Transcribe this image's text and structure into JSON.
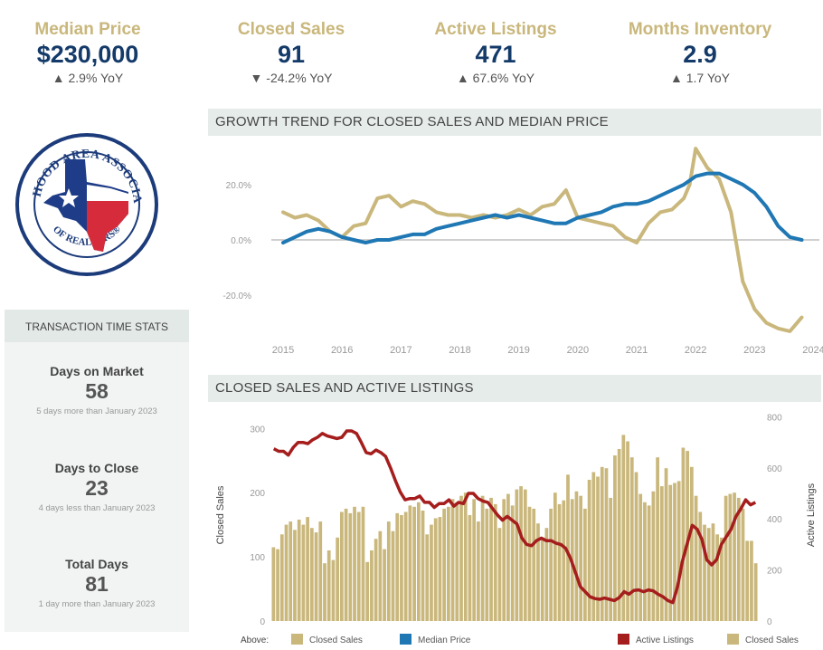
{
  "kpis": [
    {
      "label": "Median Price",
      "value": "$230,000",
      "change": "▲ 2.9% YoY"
    },
    {
      "label": "Closed Sales",
      "value": "91",
      "change": "▼ -24.2% YoY"
    },
    {
      "label": "Active Listings",
      "value": "471",
      "change": "▲ 67.6% YoY"
    },
    {
      "label": "Months Inventory",
      "value": "2.9",
      "change": "▲ 1.7 YoY"
    }
  ],
  "logo": {
    "top_text": "FORT HOOD AREA ASSOCIATION",
    "bottom_text": "OF REALTORS®"
  },
  "transaction": {
    "title": "TRANSACTION TIME STATS",
    "stats": [
      {
        "title": "Days on Market",
        "value": "58",
        "sub": "5 days more than January 2023"
      },
      {
        "title": "Days to Close",
        "value": "23",
        "sub": "4 days less than January 2023"
      },
      {
        "title": "Total Days",
        "value": "81",
        "sub": "1 day more than January 2023"
      }
    ]
  },
  "colors": {
    "gold": "#c9b77c",
    "blue": "#1f77b4",
    "red": "#a51d1d",
    "navy": "#133a69"
  },
  "chart_data": [
    {
      "type": "line",
      "title": "GROWTH TREND FOR CLOSED SALES AND MEDIAN PRICE",
      "x_ticks": [
        "2015",
        "2016",
        "2017",
        "2018",
        "2019",
        "2020",
        "2021",
        "2022",
        "2023",
        "2024"
      ],
      "y_ticks": [
        "20.0%",
        "0.0%",
        "-20.0%"
      ],
      "ylim": [
        -35,
        35
      ],
      "series": [
        {
          "name": "Closed Sales",
          "color": "#c9b77c",
          "x": [
            2015.0,
            2015.2,
            2015.4,
            2015.6,
            2015.8,
            2016.0,
            2016.2,
            2016.4,
            2016.6,
            2016.8,
            2017.0,
            2017.2,
            2017.4,
            2017.6,
            2017.8,
            2018.0,
            2018.2,
            2018.4,
            2018.6,
            2018.8,
            2019.0,
            2019.2,
            2019.4,
            2019.6,
            2019.8,
            2020.0,
            2020.2,
            2020.4,
            2020.6,
            2020.8,
            2021.0,
            2021.2,
            2021.4,
            2021.6,
            2021.8,
            2021.9,
            2022.0,
            2022.2,
            2022.4,
            2022.6,
            2022.8,
            2023.0,
            2023.2,
            2023.4,
            2023.6,
            2023.8
          ],
          "y": [
            10,
            8,
            9,
            7,
            3,
            1,
            5,
            6,
            15,
            16,
            12,
            14,
            13,
            10,
            9,
            9,
            8,
            9,
            8,
            9,
            11,
            9,
            12,
            13,
            18,
            8,
            7,
            6,
            5,
            1,
            -1,
            6,
            10,
            11,
            15,
            20,
            33,
            26,
            22,
            10,
            -15,
            -25,
            -30,
            -32,
            -33,
            -28
          ]
        },
        {
          "name": "Median Price",
          "color": "#1f77b4",
          "x": [
            2015.0,
            2015.2,
            2015.4,
            2015.6,
            2015.8,
            2016.0,
            2016.2,
            2016.4,
            2016.6,
            2016.8,
            2017.0,
            2017.2,
            2017.4,
            2017.6,
            2017.8,
            2018.0,
            2018.2,
            2018.4,
            2018.6,
            2018.8,
            2019.0,
            2019.2,
            2019.4,
            2019.6,
            2019.8,
            2020.0,
            2020.2,
            2020.4,
            2020.6,
            2020.8,
            2021.0,
            2021.2,
            2021.4,
            2021.6,
            2021.8,
            2022.0,
            2022.2,
            2022.4,
            2022.6,
            2022.8,
            2023.0,
            2023.2,
            2023.4,
            2023.6,
            2023.8
          ],
          "y": [
            -1,
            1,
            3,
            4,
            3,
            1,
            0,
            -1,
            0,
            0,
            1,
            2,
            2,
            4,
            5,
            6,
            7,
            8,
            9,
            8,
            9,
            8,
            7,
            6,
            6,
            8,
            9,
            10,
            12,
            13,
            13,
            14,
            16,
            18,
            20,
            23,
            24,
            24,
            22,
            20,
            17,
            12,
            5,
            1,
            0
          ]
        }
      ]
    },
    {
      "type": "bar+line",
      "title": "CLOSED SALES AND ACTIVE LISTINGS",
      "ylabel": "Closed Sales",
      "ylabel_right": "Active Listings",
      "y_ticks": [
        "300",
        "200",
        "100",
        "0"
      ],
      "y2_ticks": [
        "800",
        "600",
        "400",
        "200",
        "0"
      ],
      "ylim": [
        0,
        330
      ],
      "y2lim": [
        0,
        830
      ],
      "legend": {
        "above_label": "Above:",
        "items": [
          {
            "label": "Closed Sales",
            "color": "#c9b77c"
          },
          {
            "label": "Median Price",
            "color": "#1f77b4"
          },
          {
            "label": "Active Listings",
            "color": "#a51d1d"
          },
          {
            "label": "Closed Sales",
            "color": "#c9b77c"
          }
        ]
      },
      "series": [
        {
          "name": "Closed Sales",
          "color": "#c9b77c",
          "values": [
            115,
            112,
            135,
            150,
            155,
            142,
            158,
            150,
            162,
            145,
            138,
            155,
            90,
            110,
            95,
            130,
            170,
            175,
            168,
            178,
            170,
            178,
            92,
            110,
            128,
            140,
            112,
            155,
            140,
            168,
            165,
            170,
            180,
            178,
            185,
            172,
            135,
            150,
            160,
            162,
            175,
            178,
            190,
            185,
            195,
            200,
            165,
            190,
            155,
            195,
            175,
            192,
            182,
            145,
            190,
            198,
            180,
            205,
            210,
            205,
            178,
            175,
            152,
            130,
            145,
            175,
            200,
            182,
            188,
            228,
            190,
            202,
            195,
            175,
            220,
            232,
            225,
            240,
            238,
            192,
            258,
            268,
            290,
            280,
            255,
            232,
            198,
            185,
            180,
            202,
            255,
            210,
            238,
            212,
            215,
            218,
            270,
            265,
            240,
            195,
            170,
            150,
            145,
            152,
            135,
            130,
            195,
            198,
            200,
            192,
            175,
            125,
            125,
            90
          ]
        },
        {
          "name": "Active Listings",
          "color": "#a51d1d",
          "values": [
            675,
            665,
            665,
            650,
            680,
            700,
            700,
            695,
            710,
            720,
            735,
            725,
            720,
            715,
            720,
            745,
            745,
            735,
            700,
            660,
            655,
            670,
            660,
            645,
            600,
            550,
            505,
            475,
            480,
            480,
            490,
            465,
            465,
            445,
            460,
            460,
            475,
            450,
            465,
            460,
            500,
            500,
            480,
            470,
            465,
            440,
            415,
            395,
            410,
            395,
            380,
            325,
            300,
            295,
            315,
            325,
            315,
            315,
            305,
            300,
            285,
            245,
            190,
            135,
            115,
            95,
            88,
            85,
            90,
            85,
            80,
            92,
            115,
            105,
            120,
            122,
            115,
            122,
            118,
            105,
            95,
            80,
            72,
            135,
            235,
            305,
            375,
            360,
            320,
            240,
            220,
            240,
            300,
            330,
            360,
            410,
            440,
            475,
            455,
            465
          ]
        }
      ]
    }
  ]
}
